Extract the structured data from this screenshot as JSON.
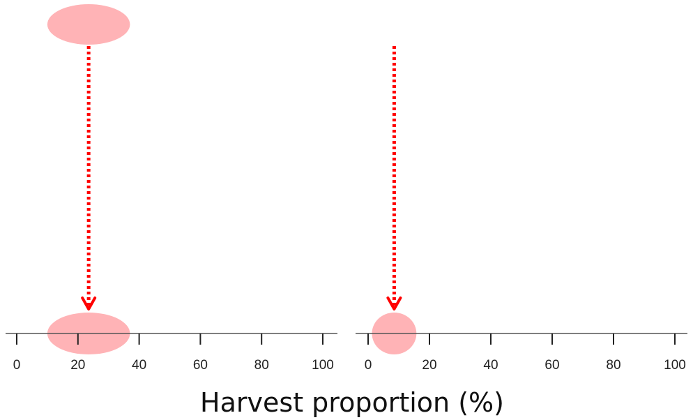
{
  "chart_data": {
    "type": "scatter",
    "xlabel": "Harvest proportion (%)",
    "colors": {
      "ellipse": "#ffb3b6",
      "arrow": "#ff0000",
      "axis": "#222222"
    },
    "panels": [
      {
        "xlim": [
          0,
          100
        ],
        "ticks": [
          0,
          20,
          40,
          60,
          80,
          100
        ],
        "tick_labels": [
          "0",
          "20",
          "40",
          "60",
          "80",
          "100"
        ],
        "points": [
          {
            "role": "start",
            "x": 23.5,
            "x_min": 10,
            "x_max": 37
          },
          {
            "role": "end",
            "x": 23.5,
            "x_min": 10,
            "x_max": 37
          }
        ],
        "arrow": {
          "x": 23.5,
          "style": "dotted"
        }
      },
      {
        "xlim": [
          0,
          100
        ],
        "ticks": [
          0,
          20,
          40,
          60,
          80,
          100
        ],
        "tick_labels": [
          "0",
          "20",
          "40",
          "60",
          "80",
          "100"
        ],
        "points": [
          {
            "role": "end",
            "x": 8.5,
            "x_min": 1.5,
            "x_max": 16
          }
        ],
        "arrow": {
          "x": 8.5,
          "style": "dotted"
        }
      }
    ]
  }
}
